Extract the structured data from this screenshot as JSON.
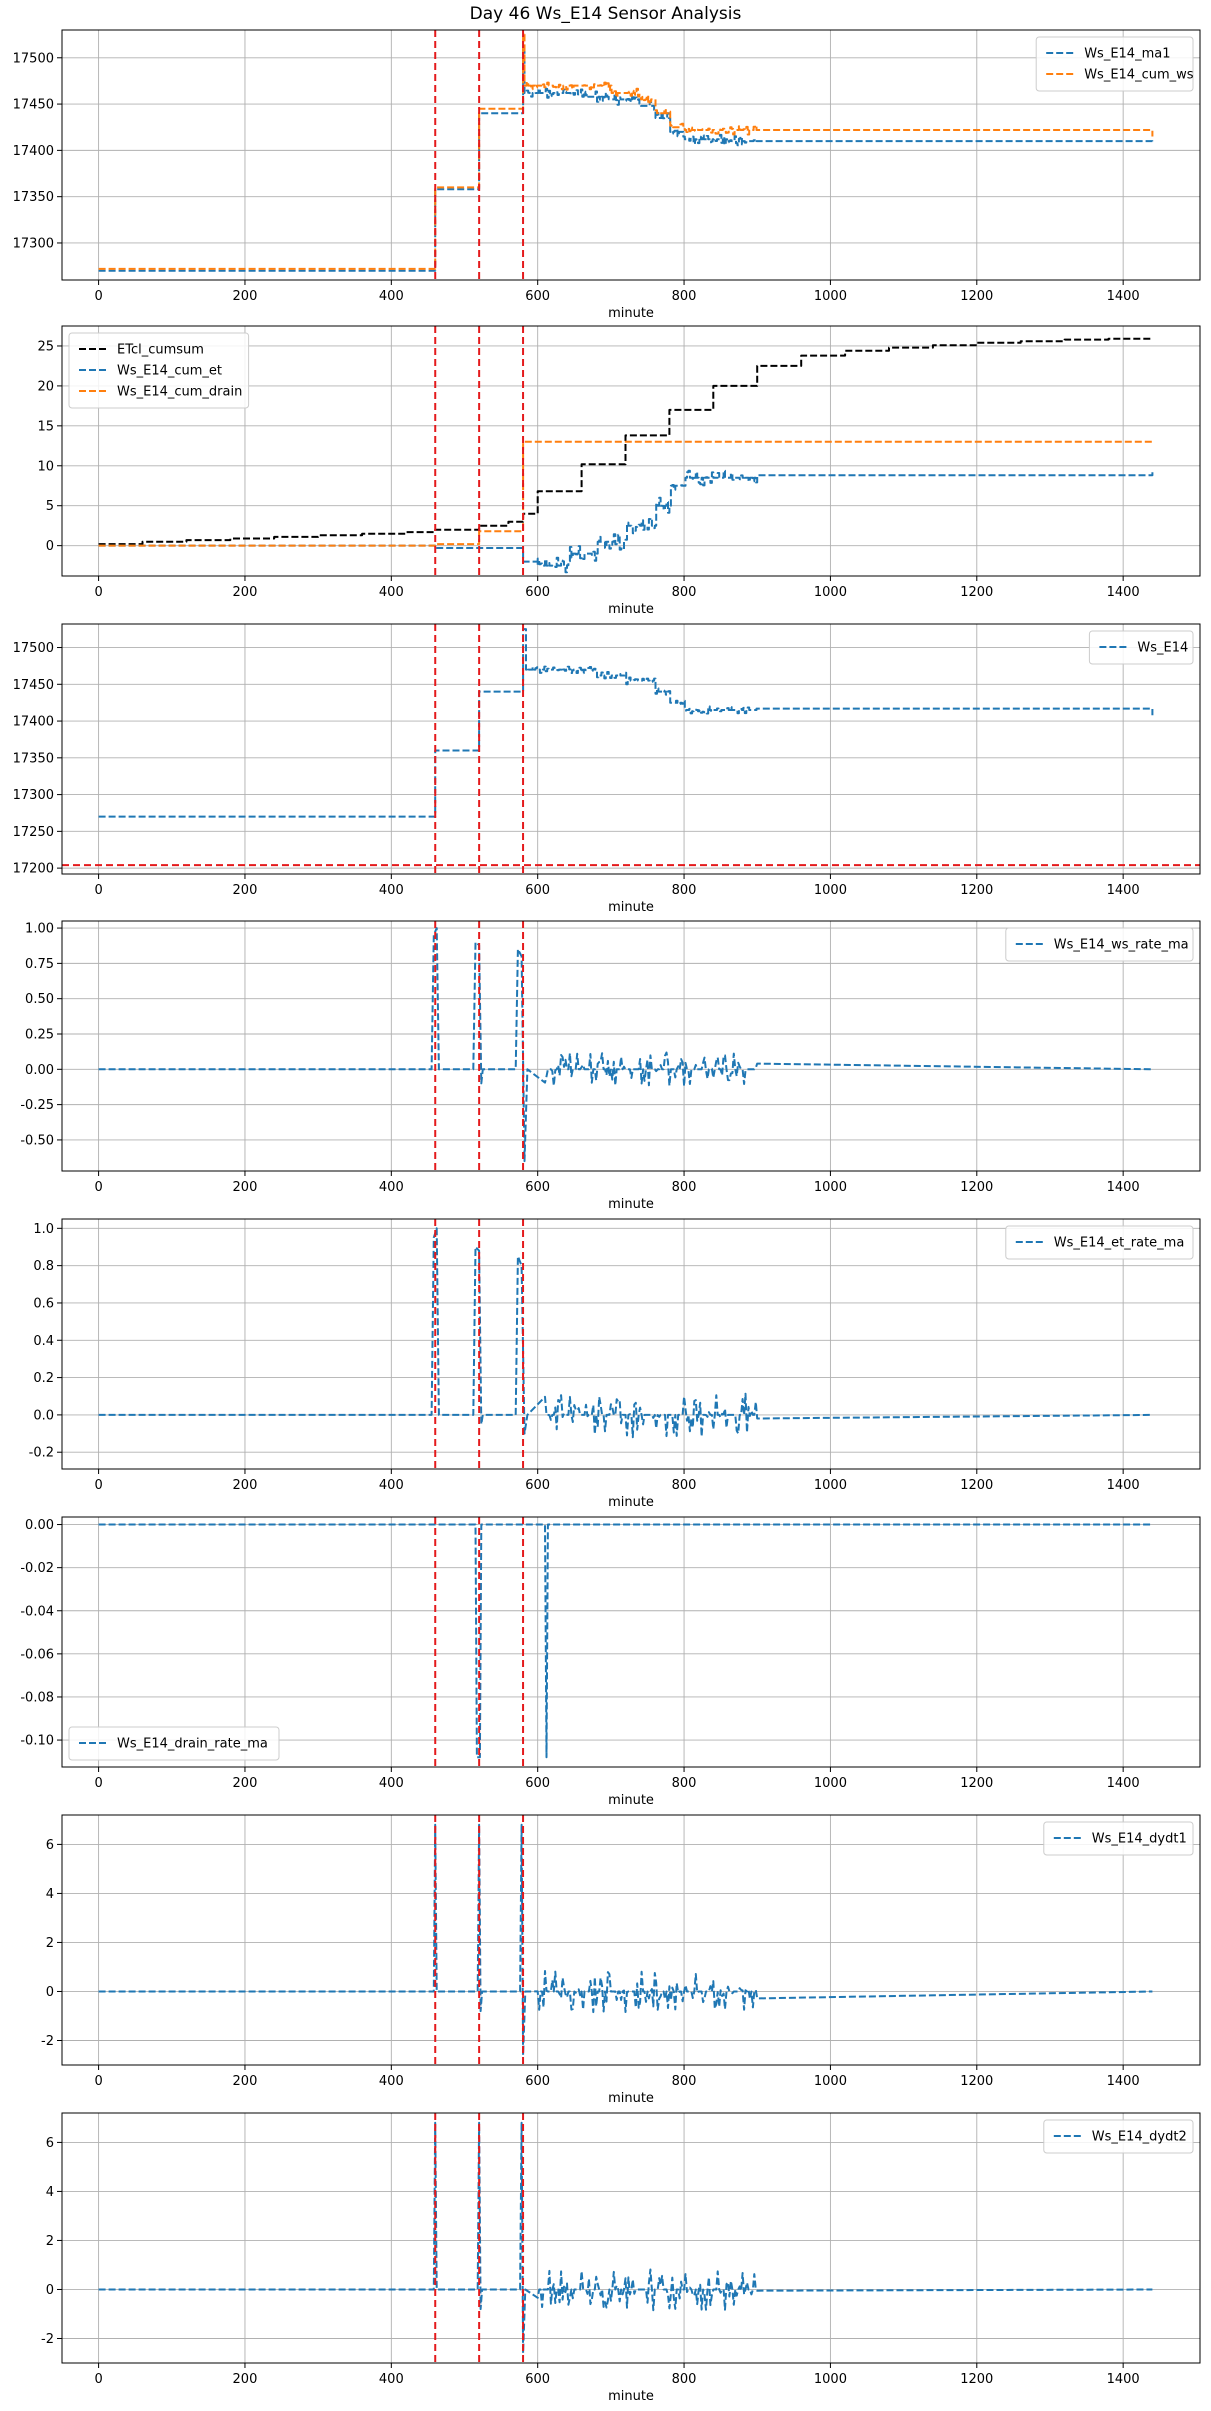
{
  "figure": {
    "title": "Day 46 Ws_E14 Sensor Analysis"
  },
  "colors": {
    "blue": "#1f77b4",
    "orange": "#ff7f0e",
    "black": "#000000",
    "red": "#e41a1c",
    "grid": "#b0b0b0"
  },
  "chart_data": [
    {
      "type": "line",
      "xlabel": "minute",
      "xlim": [
        -50,
        1505
      ],
      "ylim": [
        17260,
        17530
      ],
      "xticks": [
        0,
        200,
        400,
        600,
        800,
        1000,
        1200,
        1400
      ],
      "yticks": [
        17300,
        17350,
        17400,
        17450,
        17500
      ],
      "legend_loc": "top-right",
      "vlines": [
        460,
        520,
        580
      ],
      "series": [
        {
          "name": "Ws_E14_ma1",
          "color": "#1f77b4",
          "kind": "step",
          "points": [
            [
              0,
              17270
            ],
            [
              460,
              17270
            ],
            [
              460,
              17358
            ],
            [
              520,
              17358
            ],
            [
              520,
              17440
            ],
            [
              578,
              17440
            ],
            [
              580,
              17512
            ],
            [
              582,
              17462
            ],
            [
              640,
              17462
            ],
            [
              660,
              17458
            ],
            [
              700,
              17455
            ],
            [
              740,
              17448
            ],
            [
              760,
              17435
            ],
            [
              780,
              17420
            ],
            [
              800,
              17412
            ],
            [
              840,
              17412
            ],
            [
              860,
              17410
            ],
            [
              900,
              17410
            ],
            [
              900,
              17408
            ],
            [
              1440,
              17408
            ]
          ],
          "noise": {
            "from": 585,
            "to": 900,
            "amp": 6
          }
        },
        {
          "name": "Ws_E14_cum_ws",
          "color": "#ff7f0e",
          "kind": "step",
          "points": [
            [
              0,
              17272
            ],
            [
              460,
              17272
            ],
            [
              460,
              17360
            ],
            [
              520,
              17360
            ],
            [
              520,
              17445
            ],
            [
              578,
              17445
            ],
            [
              580,
              17525
            ],
            [
              582,
              17470
            ],
            [
              640,
              17470
            ],
            [
              700,
              17462
            ],
            [
              740,
              17455
            ],
            [
              760,
              17440
            ],
            [
              780,
              17425
            ],
            [
              800,
              17422
            ],
            [
              900,
              17422
            ],
            [
              900,
              17415
            ],
            [
              1440,
              17415
            ]
          ],
          "noise": {
            "from": 585,
            "to": 900,
            "amp": 5
          }
        }
      ]
    },
    {
      "type": "line",
      "xlabel": "minute",
      "xlim": [
        -50,
        1505
      ],
      "ylim": [
        -3.8,
        27.5
      ],
      "xticks": [
        0,
        200,
        400,
        600,
        800,
        1000,
        1200,
        1400
      ],
      "yticks": [
        0,
        5,
        10,
        15,
        20,
        25
      ],
      "legend_loc": "top-left",
      "vlines": [
        460,
        520,
        580
      ],
      "series": [
        {
          "name": "ETcl_cumsum",
          "color": "#000000",
          "kind": "step",
          "points": [
            [
              0,
              0.2
            ],
            [
              60,
              0.5
            ],
            [
              120,
              0.7
            ],
            [
              180,
              0.9
            ],
            [
              240,
              1.1
            ],
            [
              300,
              1.3
            ],
            [
              360,
              1.5
            ],
            [
              420,
              1.7
            ],
            [
              460,
              2.0
            ],
            [
              520,
              2.5
            ],
            [
              560,
              3.0
            ],
            [
              580,
              4.0
            ],
            [
              600,
              6.8
            ],
            [
              660,
              10.2
            ],
            [
              720,
              13.8
            ],
            [
              780,
              17.0
            ],
            [
              840,
              20.0
            ],
            [
              900,
              22.5
            ],
            [
              960,
              23.8
            ],
            [
              1020,
              24.4
            ],
            [
              1080,
              24.8
            ],
            [
              1140,
              25.1
            ],
            [
              1200,
              25.4
            ],
            [
              1260,
              25.6
            ],
            [
              1320,
              25.8
            ],
            [
              1380,
              25.9
            ],
            [
              1440,
              26.0
            ]
          ]
        },
        {
          "name": "Ws_E14_cum_et",
          "color": "#1f77b4",
          "kind": "step",
          "points": [
            [
              0,
              0
            ],
            [
              460,
              0
            ],
            [
              460,
              -0.3
            ],
            [
              520,
              -0.3
            ],
            [
              575,
              -0.3
            ],
            [
              580,
              -2.0
            ],
            [
              600,
              -2.5
            ],
            [
              640,
              -1.0
            ],
            [
              680,
              0.5
            ],
            [
              720,
              2.5
            ],
            [
              760,
              5.0
            ],
            [
              780,
              7.5
            ],
            [
              800,
              8.5
            ],
            [
              900,
              8.5
            ],
            [
              900,
              9.2
            ],
            [
              1440,
              9.2
            ]
          ],
          "noise": {
            "from": 600,
            "to": 900,
            "amp": 1.0
          }
        },
        {
          "name": "Ws_E14_cum_drain",
          "color": "#ff7f0e",
          "kind": "step",
          "points": [
            [
              0,
              0
            ],
            [
              460,
              0
            ],
            [
              460,
              0.2
            ],
            [
              520,
              0.2
            ],
            [
              520,
              1.8
            ],
            [
              578,
              1.8
            ],
            [
              580,
              13.0
            ],
            [
              1440,
              13.0
            ]
          ]
        }
      ]
    },
    {
      "type": "line",
      "xlabel": "minute",
      "xlim": [
        -50,
        1505
      ],
      "ylim": [
        17192,
        17532
      ],
      "xticks": [
        0,
        200,
        400,
        600,
        800,
        1000,
        1200,
        1400
      ],
      "yticks": [
        17200,
        17250,
        17300,
        17350,
        17400,
        17450,
        17500
      ],
      "legend_loc": "top-right",
      "vlines": [
        460,
        520,
        580
      ],
      "hlines": [
        17204
      ],
      "series": [
        {
          "name": "Ws_E14",
          "color": "#1f77b4",
          "kind": "step",
          "points": [
            [
              0,
              17270
            ],
            [
              460,
              17270
            ],
            [
              460,
              17360
            ],
            [
              520,
              17360
            ],
            [
              520,
              17440
            ],
            [
              578,
              17440
            ],
            [
              580,
              17525
            ],
            [
              584,
              17470
            ],
            [
              640,
              17470
            ],
            [
              680,
              17462
            ],
            [
              720,
              17455
            ],
            [
              760,
              17440
            ],
            [
              780,
              17425
            ],
            [
              800,
              17415
            ],
            [
              900,
              17415
            ],
            [
              900,
              17408
            ],
            [
              1440,
              17408
            ]
          ],
          "noise": {
            "from": 585,
            "to": 900,
            "amp": 5
          }
        }
      ]
    },
    {
      "type": "line",
      "xlabel": "minute",
      "xlim": [
        -50,
        1505
      ],
      "ylim": [
        -0.72,
        1.05
      ],
      "xticks": [
        0,
        200,
        400,
        600,
        800,
        1000,
        1200,
        1400
      ],
      "yticks": [
        -0.5,
        -0.25,
        0.0,
        0.25,
        0.5,
        0.75,
        1.0
      ],
      "tick_decimals": 2,
      "legend_loc": "top-right",
      "vlines": [
        460,
        520,
        580
      ],
      "series": [
        {
          "name": "Ws_E14_ws_rate_ma",
          "color": "#1f77b4",
          "kind": "line",
          "points": [
            [
              0,
              0
            ],
            [
              455,
              0
            ],
            [
              458,
              0.95
            ],
            [
              462,
              1.0
            ],
            [
              465,
              0
            ],
            [
              512,
              0
            ],
            [
              515,
              0.9
            ],
            [
              520,
              0.88
            ],
            [
              523,
              -0.1
            ],
            [
              525,
              0
            ],
            [
              570,
              0
            ],
            [
              573,
              0.85
            ],
            [
              578,
              0.8
            ],
            [
              582,
              -0.65
            ],
            [
              586,
              0
            ],
            [
              1440,
              0
            ]
          ],
          "noise": {
            "from": 610,
            "to": 900,
            "amp": 0.12
          }
        }
      ]
    },
    {
      "type": "line",
      "xlabel": "minute",
      "xlim": [
        -50,
        1505
      ],
      "ylim": [
        -0.29,
        1.05
      ],
      "xticks": [
        0,
        200,
        400,
        600,
        800,
        1000,
        1200,
        1400
      ],
      "yticks": [
        -0.2,
        0.0,
        0.2,
        0.4,
        0.6,
        0.8,
        1.0
      ],
      "tick_decimals": 1,
      "legend_loc": "top-right",
      "vlines": [
        460,
        520,
        580
      ],
      "series": [
        {
          "name": "Ws_E14_et_rate_ma",
          "color": "#1f77b4",
          "kind": "line",
          "points": [
            [
              0,
              0
            ],
            [
              455,
              0
            ],
            [
              458,
              0.95
            ],
            [
              462,
              1.0
            ],
            [
              465,
              0
            ],
            [
              512,
              0
            ],
            [
              515,
              0.9
            ],
            [
              520,
              0.88
            ],
            [
              523,
              -0.05
            ],
            [
              525,
              0
            ],
            [
              570,
              0
            ],
            [
              573,
              0.85
            ],
            [
              578,
              0.8
            ],
            [
              582,
              -0.1
            ],
            [
              586,
              0
            ],
            [
              1440,
              0
            ]
          ],
          "noise": {
            "from": 610,
            "to": 900,
            "amp": 0.12
          }
        }
      ]
    },
    {
      "type": "line",
      "xlabel": "minute",
      "xlim": [
        -50,
        1505
      ],
      "ylim": [
        -0.1125,
        0.0035
      ],
      "xticks": [
        0,
        200,
        400,
        600,
        800,
        1000,
        1200,
        1400
      ],
      "yticks": [
        -0.1,
        -0.08,
        -0.06,
        -0.04,
        -0.02,
        0.0
      ],
      "tick_decimals": 2,
      "legend_loc": "bottom-left",
      "vlines": [
        460,
        520,
        580
      ],
      "series": [
        {
          "name": "Ws_E14_drain_rate_ma",
          "color": "#1f77b4",
          "kind": "line",
          "points": [
            [
              0,
              0
            ],
            [
              515,
              0
            ],
            [
              517,
              -0.108
            ],
            [
              521,
              -0.108
            ],
            [
              523,
              0
            ],
            [
              610,
              0
            ],
            [
              612,
              -0.108
            ],
            [
              614,
              0
            ],
            [
              1440,
              0
            ]
          ]
        }
      ]
    },
    {
      "type": "line",
      "xlabel": "minute",
      "xlim": [
        -50,
        1505
      ],
      "ylim": [
        -3.0,
        7.2
      ],
      "xticks": [
        0,
        200,
        400,
        600,
        800,
        1000,
        1200,
        1400
      ],
      "yticks": [
        -2,
        0,
        2,
        4,
        6
      ],
      "legend_loc": "top-right",
      "vlines": [
        460,
        520,
        580
      ],
      "series": [
        {
          "name": "Ws_E14_dydt1",
          "color": "#1f77b4",
          "kind": "line",
          "points": [
            [
              0,
              0
            ],
            [
              458,
              0
            ],
            [
              460,
              6.8
            ],
            [
              462,
              0
            ],
            [
              518,
              0
            ],
            [
              520,
              6.8
            ],
            [
              522,
              -0.8
            ],
            [
              524,
              0
            ],
            [
              576,
              0
            ],
            [
              578,
              6.8
            ],
            [
              580,
              -2.6
            ],
            [
              583,
              0
            ],
            [
              1440,
              0
            ]
          ],
          "noise": {
            "from": 600,
            "to": 900,
            "amp": 0.85
          }
        }
      ]
    },
    {
      "type": "line",
      "xlabel": "minute",
      "xlim": [
        -50,
        1505
      ],
      "ylim": [
        -3.0,
        7.2
      ],
      "xticks": [
        0,
        200,
        400,
        600,
        800,
        1000,
        1200,
        1400
      ],
      "yticks": [
        -2,
        0,
        2,
        4,
        6
      ],
      "legend_loc": "top-right",
      "vlines": [
        460,
        520,
        580
      ],
      "series": [
        {
          "name": "Ws_E14_dydt2",
          "color": "#1f77b4",
          "kind": "line",
          "points": [
            [
              0,
              0
            ],
            [
              458,
              0
            ],
            [
              460,
              6.8
            ],
            [
              462,
              0
            ],
            [
              518,
              0
            ],
            [
              520,
              6.8
            ],
            [
              522,
              -0.8
            ],
            [
              524,
              0
            ],
            [
              576,
              0
            ],
            [
              578,
              6.8
            ],
            [
              580,
              -2.6
            ],
            [
              583,
              0
            ],
            [
              1440,
              0
            ]
          ],
          "noise": {
            "from": 600,
            "to": 900,
            "amp": 0.85
          }
        }
      ]
    }
  ]
}
